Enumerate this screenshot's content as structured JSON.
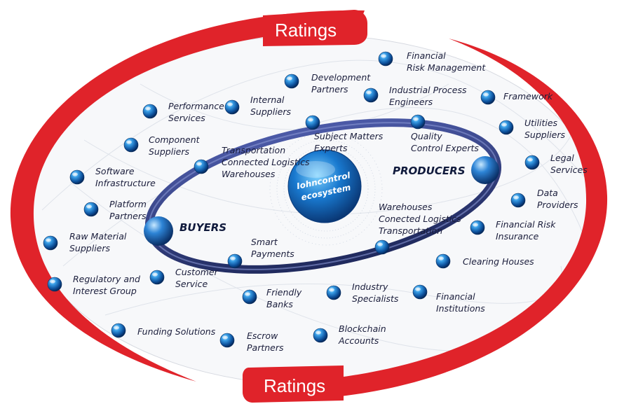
{
  "banners": {
    "top": "Ratings",
    "bottom": "Ratings"
  },
  "core": {
    "line1": "Iohncontrol",
    "line2": "ecosystem"
  },
  "ring": {
    "producers": "PRODUCERS",
    "buyers": "BUYERS"
  },
  "outer_nodes": [
    {
      "id": "financial-risk-management",
      "lines": [
        "Financial",
        "Risk Management"
      ]
    },
    {
      "id": "development-partners",
      "lines": [
        "Development",
        "Partners"
      ]
    },
    {
      "id": "industrial-process-engineers",
      "lines": [
        "Industrial Process",
        "Engineers"
      ]
    },
    {
      "id": "framework",
      "lines": [
        "Framework"
      ]
    },
    {
      "id": "performance-services",
      "lines": [
        "Performance",
        "Services"
      ]
    },
    {
      "id": "internal-suppliers",
      "lines": [
        "Internal",
        "Suppliers"
      ]
    },
    {
      "id": "utilities-suppliers",
      "lines": [
        "Utilities",
        "Suppliers"
      ]
    },
    {
      "id": "component-suppliers",
      "lines": [
        "Component",
        "Suppliers"
      ]
    },
    {
      "id": "legal-services",
      "lines": [
        "Legal",
        "Services"
      ]
    },
    {
      "id": "software-infrastructure",
      "lines": [
        "Software",
        "Infrastructure"
      ]
    },
    {
      "id": "data-providers",
      "lines": [
        "Data",
        "Providers"
      ]
    },
    {
      "id": "platform-partners",
      "lines": [
        "Platform",
        "Partners"
      ]
    },
    {
      "id": "financial-risk-insurance",
      "lines": [
        "Financial Risk",
        "Insurance"
      ]
    },
    {
      "id": "raw-material-suppliers",
      "lines": [
        "Raw Material",
        "Suppliers"
      ]
    },
    {
      "id": "clearing-houses",
      "lines": [
        "Clearing Houses"
      ]
    },
    {
      "id": "regulatory-interest-group",
      "lines": [
        "Regulatory and",
        "Interest Group"
      ]
    },
    {
      "id": "customer-service",
      "lines": [
        "Customer",
        "Service"
      ]
    },
    {
      "id": "friendly-banks",
      "lines": [
        "Friendly",
        "Banks"
      ]
    },
    {
      "id": "industry-specialists",
      "lines": [
        "Industry",
        "Specialists"
      ]
    },
    {
      "id": "financial-institutions",
      "lines": [
        "Financial",
        "Institutions"
      ]
    },
    {
      "id": "funding-solutions",
      "lines": [
        "Funding Solutions"
      ]
    },
    {
      "id": "escrow-partners",
      "lines": [
        "Escrow",
        "Partners"
      ]
    },
    {
      "id": "blockchain-accounts",
      "lines": [
        "Blockchain",
        "Accounts"
      ]
    }
  ],
  "ring_nodes": [
    {
      "id": "subject-matters-experts",
      "lines": [
        "Subject Matters",
        "Experts"
      ]
    },
    {
      "id": "quality-control-experts",
      "lines": [
        "Quality",
        "Control Experts"
      ]
    },
    {
      "id": "transportation-logistics-warehouses",
      "lines": [
        "Transportation",
        "Connected Logistics",
        "Warehouses"
      ]
    },
    {
      "id": "warehouses-logistics-transportation",
      "lines": [
        "Warehouses",
        "Conected Logistics",
        "Transportation"
      ]
    },
    {
      "id": "smart-payments",
      "lines": [
        "Smart",
        "Payments"
      ]
    }
  ],
  "colors": {
    "ratings_red": "#e0232a",
    "ring_navy": "#2e3a78",
    "node_blue": "#1c6fc4",
    "text_dark": "#1b1e3c"
  }
}
